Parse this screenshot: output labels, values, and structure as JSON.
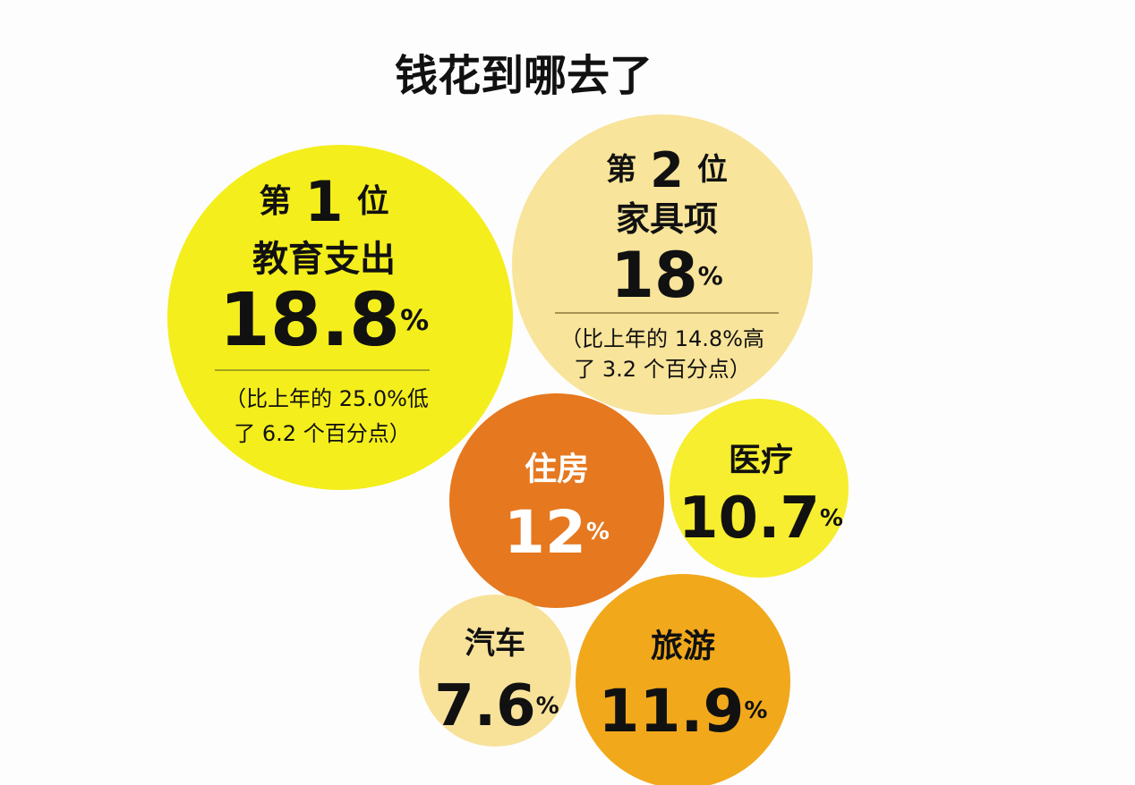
{
  "title": "钱花到哪去了",
  "bubbles": [
    {
      "rank_prefix": "第",
      "rank": "1",
      "rank_suffix": "位",
      "label": "教育支出",
      "value": "18.8",
      "unit": "%",
      "note": [
        "（比上年的 25.0%低",
        "了 6.2 个百分点）"
      ]
    },
    {
      "rank_prefix": "第",
      "rank": "2",
      "rank_suffix": "位",
      "label": "家具项",
      "value": "18",
      "unit": "%",
      "note": [
        "（比上年的 14.8%高",
        "了 3.2 个百分点）"
      ]
    },
    {
      "label": "住房",
      "value": "12",
      "unit": "%"
    },
    {
      "label": "医疗",
      "value": "10.7",
      "unit": "%"
    },
    {
      "label": "汽车",
      "value": "7.6",
      "unit": "%"
    },
    {
      "label": "旅游",
      "value": "11.9",
      "unit": "%"
    }
  ]
}
